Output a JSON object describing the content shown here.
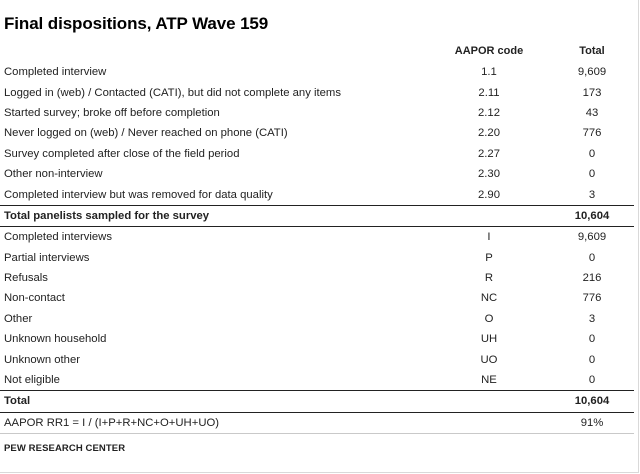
{
  "title": "Final dispositions, ATP Wave 159",
  "headers": {
    "label": "",
    "code": "AAPOR code",
    "total": "Total"
  },
  "rows": [
    {
      "label": "Completed interview",
      "code": "1.1",
      "total": "9,609"
    },
    {
      "label": "Logged in (web) / Contacted (CATI), but did not complete any items",
      "code": "2.11",
      "total": "173"
    },
    {
      "label": "Started survey; broke off before completion",
      "code": "2.12",
      "total": "43"
    },
    {
      "label": "Never logged on (web) / Never reached on phone (CATI)",
      "code": "2.20",
      "total": "776"
    },
    {
      "label": "Survey completed after close of the field period",
      "code": "2.27",
      "total": "0"
    },
    {
      "label": "Other non-interview",
      "code": "2.30",
      "total": "0"
    },
    {
      "label": "Completed interview but was removed for data quality",
      "code": "2.90",
      "total": "3"
    },
    {
      "label": "Total panelists sampled for the survey",
      "code": "",
      "total": "10,604"
    },
    {
      "label": "Completed interviews",
      "code": "I",
      "total": "9,609"
    },
    {
      "label": "Partial interviews",
      "code": "P",
      "total": "0"
    },
    {
      "label": "Refusals",
      "code": "R",
      "total": "216"
    },
    {
      "label": "Non-contact",
      "code": "NC",
      "total": "776"
    },
    {
      "label": "Other",
      "code": "O",
      "total": "3"
    },
    {
      "label": "Unknown household",
      "code": "UH",
      "total": "0"
    },
    {
      "label": "Unknown other",
      "code": "UO",
      "total": "0"
    },
    {
      "label": "Not eligible",
      "code": "NE",
      "total": "0"
    },
    {
      "label": "Total",
      "code": "",
      "total": "10,604"
    },
    {
      "label": "AAPOR RR1 = I / (I+P+R+NC+O+UH+UO)",
      "code": "",
      "total": "91%"
    }
  ],
  "source": "PEW RESEARCH CENTER"
}
